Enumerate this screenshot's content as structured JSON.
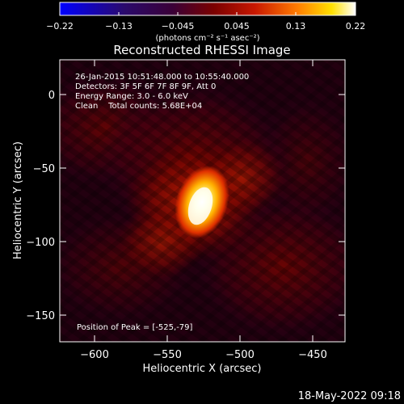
{
  "colorbar": {
    "ticks": [
      "−0.22",
      "−0.13",
      "−0.045",
      "0.045",
      "0.13",
      "0.22"
    ],
    "unit_label": "(photons cm⁻² s⁻¹ asec⁻²)"
  },
  "title": "Reconstructed RHESSI Image",
  "info": {
    "line1": "26-Jan-2015 10:51:48.000 to 10:55:40.000",
    "line2": "Detectors: 3F 5F 6F 7F 8F 9F, Att 0",
    "line3": "Energy Range: 3.0 - 6.0 keV",
    "line4": "Clean    Total counts: 5.68E+04"
  },
  "peak_label": "Position of Peak = [-525,-79]",
  "axes": {
    "xlabel": "Heliocentric X (arcsec)",
    "ylabel": "Heliocentric Y (arcsec)",
    "x_ticks": [
      "−600",
      "−550",
      "−500",
      "−450"
    ],
    "y_ticks": [
      "0",
      "−50",
      "−100",
      "−150"
    ],
    "x_range": [
      -621,
      -428
    ],
    "y_range": [
      -167,
      23
    ]
  },
  "peak_position": [
    -525,
    -79
  ],
  "footer_date": "18-May-2022 09:18",
  "colors": {
    "background": "#000000",
    "axis": "#ffffff",
    "colormap": [
      "#0000ff",
      "#2a0a6a",
      "#300030",
      "#7a0000",
      "#c81800",
      "#ff7a00",
      "#ffd600",
      "#ffffff"
    ]
  }
}
